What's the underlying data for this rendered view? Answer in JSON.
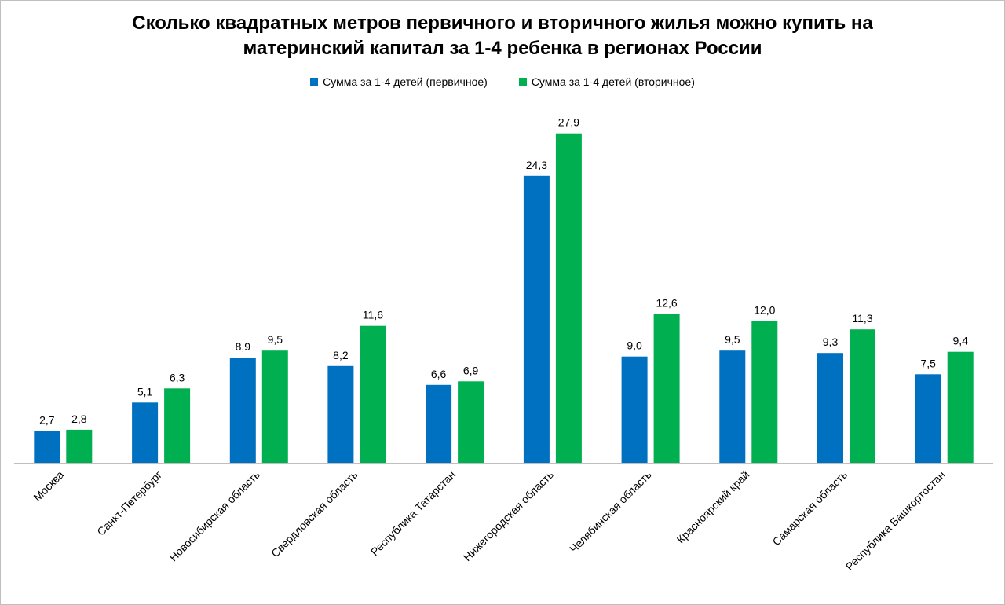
{
  "chart_data": {
    "type": "bar",
    "title": "Сколько квадратных метров первичного и вторичного жилья можно купить на материнский капитал за 1-4 ребенка в регионах России",
    "title_lines": [
      "Сколько квадратных метров первичного и вторичного жилья можно купить на",
      "материнский капитал за 1-4 ребенка в регионах России"
    ],
    "categories": [
      "Москва",
      "Санкт-Петербург",
      "Новосибирская область",
      "Свердловская область",
      "Республика Татарстан",
      "Нижегородская область",
      "Челябинская область",
      "Красноярский край",
      "Самарская область",
      "Республика Башкортостан"
    ],
    "series": [
      {
        "name": "Сумма за 1-4 детей (первичное)",
        "color": "#0070C0",
        "values": [
          2.7,
          5.1,
          8.9,
          8.2,
          6.6,
          24.3,
          9.0,
          9.5,
          9.3,
          7.5
        ],
        "labels": [
          "2,7",
          "5,1",
          "8,9",
          "8,2",
          "6,6",
          "24,3",
          "9,0",
          "9,5",
          "9,3",
          "7,5"
        ]
      },
      {
        "name": "Сумма за 1-4 детей (вторичное)",
        "color": "#00B050",
        "values": [
          2.8,
          6.3,
          9.5,
          11.6,
          6.9,
          27.9,
          12.6,
          12.0,
          11.3,
          9.4
        ],
        "labels": [
          "2,8",
          "6,3",
          "9,5",
          "11,6",
          "6,9",
          "27,9",
          "12,6",
          "12,0",
          "11,3",
          "9,4"
        ]
      }
    ],
    "xlabel": "",
    "ylabel": "",
    "ylim": [
      0,
      30
    ],
    "grid": false,
    "legend_position": "top-center",
    "data_labels": true
  }
}
